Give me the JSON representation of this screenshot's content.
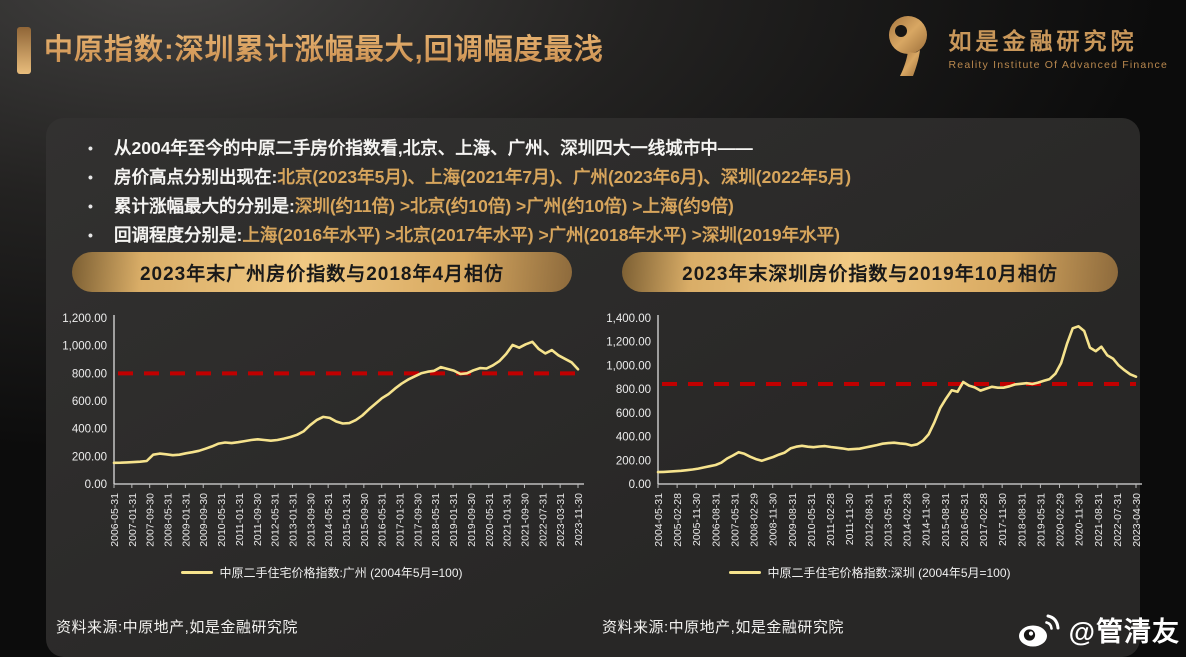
{
  "header": {
    "title": "中原指数:深圳累计涨幅最大,回调幅度最浅"
  },
  "logo": {
    "letter": "R",
    "name_cn": "如是金融研究院",
    "name_en": "Reality Institute Of Advanced Finance"
  },
  "bullets": [
    {
      "dot": "•",
      "white": "从2004年至今的中原二手房价指数看,北京、上海、广州、深圳四大一线城市中——",
      "gold": ""
    },
    {
      "dot": "•",
      "white": "房价高点分别出现在:",
      "gold": "北京(2023年5月)、上海(2021年7月)、广州(2023年6月)、深圳(2022年5月)"
    },
    {
      "dot": "•",
      "white": "累计涨幅最大的分别是:",
      "gold": "深圳(约11倍) >北京(约10倍) >广州(约10倍) >上海(约9倍)"
    },
    {
      "dot": "•",
      "white": "回调程度分别是:",
      "gold": "上海(2016年水平) >北京(2017年水平) >广州(2018年水平) >深圳(2019年水平)"
    }
  ],
  "pills": [
    "2023年末广州房价指数与2018年4月相仿",
    "2023年末深圳房价指数与2019年10月相仿"
  ],
  "sources": {
    "left": "资料来源:中原地产,如是金融研究院",
    "right": "资料来源:中原地产,如是金融研究院"
  },
  "watermark": {
    "icon": "weibo-icon",
    "handle": "@管清友"
  },
  "colors": {
    "accent_gold": "#d7a55c",
    "line_yellow": "#f6e38d",
    "reference_red": "#c00000",
    "panel_bg": "#2d2c2b"
  },
  "chart_data": [
    {
      "type": "line",
      "title": "2023年末广州房价指数与2018年4月相仿",
      "legend": "中原二手住宅价格指数:广州 (2004年5月=100)",
      "y_max": 1200,
      "ylim": [
        0,
        1200
      ],
      "grid": false,
      "legend_position": "bottom",
      "margin_left": 56,
      "reference_value": 800,
      "reference_color": "#c00000",
      "line_color": "#f6e38d",
      "y_ticks": [
        {
          "v": 0,
          "label": "0.00"
        },
        {
          "v": 200,
          "label": "200.00"
        },
        {
          "v": 400,
          "label": "400.00"
        },
        {
          "v": 600,
          "label": "600.00"
        },
        {
          "v": 800,
          "label": "800.00"
        },
        {
          "v": 1000,
          "label": "1,000.00"
        },
        {
          "v": 1200,
          "label": "1,200.00"
        }
      ],
      "x_tick_labels": [
        "2006-05-31",
        "2007-01-31",
        "2007-09-30",
        "2008-05-31",
        "2009-01-31",
        "2009-09-30",
        "2010-05-31",
        "2011-01-31",
        "2011-09-30",
        "2012-05-31",
        "2013-01-31",
        "2013-09-30",
        "2014-05-31",
        "2015-01-31",
        "2015-09-30",
        "2016-05-31",
        "2017-01-31",
        "2017-09-30",
        "2018-05-31",
        "2019-01-31",
        "2019-09-30",
        "2020-05-31",
        "2021-01-31",
        "2021-09-30",
        "2022-07-31",
        "2023-03-31",
        "2023-11-30"
      ],
      "values": [
        153,
        154,
        156,
        158,
        161,
        166,
        212,
        220,
        215,
        208,
        212,
        222,
        230,
        240,
        255,
        272,
        292,
        300,
        296,
        302,
        310,
        318,
        323,
        318,
        313,
        318,
        328,
        340,
        356,
        380,
        425,
        462,
        485,
        478,
        452,
        437,
        440,
        462,
        495,
        540,
        580,
        620,
        650,
        690,
        725,
        755,
        778,
        800,
        812,
        818,
        845,
        832,
        820,
        795,
        800,
        822,
        838,
        835,
        858,
        890,
        940,
        1005,
        985,
        1010,
        1028,
        975,
        944,
        968,
        930,
        905,
        880,
        829
      ]
    },
    {
      "type": "line",
      "title": "2023年末深圳房价指数与2019年10月相仿",
      "legend": "中原二手住宅价格指数:深圳 (2004年5月=100)",
      "y_max": 1400,
      "ylim": [
        0,
        1400
      ],
      "grid": false,
      "legend_position": "bottom",
      "margin_left": 62,
      "reference_value": 843,
      "reference_color": "#c00000",
      "line_color": "#f6e38d",
      "y_ticks": [
        {
          "v": 0,
          "label": "0.00"
        },
        {
          "v": 200,
          "label": "200.00"
        },
        {
          "v": 400,
          "label": "400.00"
        },
        {
          "v": 600,
          "label": "600.00"
        },
        {
          "v": 800,
          "label": "800.00"
        },
        {
          "v": 1000,
          "label": "1,000.00"
        },
        {
          "v": 1200,
          "label": "1,200.00"
        },
        {
          "v": 1400,
          "label": "1,400.00"
        }
      ],
      "x_tick_labels": [
        "2004-05-31",
        "2005-02-28",
        "2005-11-30",
        "2006-08-31",
        "2007-05-31",
        "2008-02-29",
        "2008-11-30",
        "2009-08-31",
        "2010-05-31",
        "2011-02-28",
        "2011-11-30",
        "2012-08-31",
        "2013-05-31",
        "2014-02-28",
        "2014-11-30",
        "2015-08-31",
        "2016-05-31",
        "2017-02-28",
        "2017-11-30",
        "2018-08-31",
        "2019-05-31",
        "2020-02-29",
        "2020-11-30",
        "2021-08-31",
        "2022-07-31",
        "2023-04-30"
      ],
      "values": [
        100,
        102,
        105,
        108,
        111,
        116,
        122,
        130,
        140,
        150,
        160,
        180,
        215,
        240,
        268,
        255,
        230,
        210,
        196,
        212,
        228,
        248,
        265,
        300,
        315,
        322,
        315,
        310,
        316,
        320,
        312,
        306,
        300,
        292,
        294,
        298,
        308,
        318,
        328,
        340,
        345,
        348,
        342,
        338,
        325,
        335,
        365,
        420,
        520,
        640,
        720,
        790,
        778,
        860,
        830,
        815,
        788,
        805,
        820,
        812,
        812,
        824,
        840,
        845,
        850,
        843,
        855,
        870,
        885,
        930,
        1020,
        1180,
        1313,
        1330,
        1290,
        1150,
        1120,
        1158,
        1086,
        1058,
        1000,
        960,
        925,
        905
      ]
    }
  ]
}
